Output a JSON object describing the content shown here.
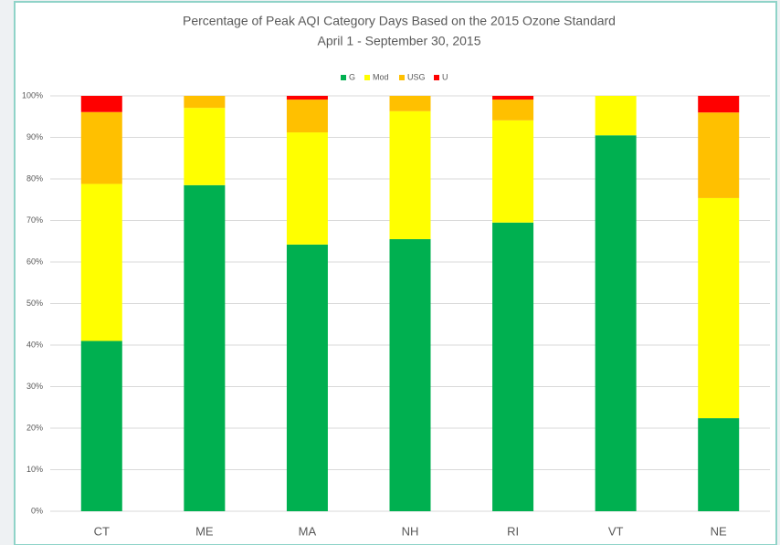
{
  "chart_data": {
    "type": "stacked_bar",
    "title": "Percentage of Peak AQI Category Days Based on the 2015 Ozone Standard",
    "subtitle": "April 1 - September 30, 2015",
    "categories": [
      "CT",
      "ME",
      "MA",
      "NH",
      "RI",
      "VT",
      "NE"
    ],
    "series": [
      {
        "name": "G",
        "color": "#00b050",
        "values": [
          41,
          78.5,
          64.2,
          65.5,
          69.5,
          90.5,
          22.4
        ]
      },
      {
        "name": "Mod",
        "color": "#ffff00",
        "values": [
          37.8,
          18.6,
          27,
          30.8,
          24.6,
          9.5,
          53
        ]
      },
      {
        "name": "USG",
        "color": "#ffc000",
        "values": [
          17.3,
          2.9,
          7.9,
          3.7,
          5,
          0,
          20.6
        ]
      },
      {
        "name": "U",
        "color": "#ff0000",
        "values": [
          3.9,
          0,
          0.9,
          0,
          0.9,
          0,
          4
        ]
      }
    ],
    "ylim": [
      0,
      100
    ],
    "yticks": [
      {
        "value": 0,
        "label": "0%"
      },
      {
        "value": 10,
        "label": "10%"
      },
      {
        "value": 20,
        "label": "20%"
      },
      {
        "value": 30,
        "label": "30%"
      },
      {
        "value": 40,
        "label": "40%"
      },
      {
        "value": 50,
        "label": "50%"
      },
      {
        "value": 60,
        "label": "60%"
      },
      {
        "value": 70,
        "label": "70%"
      },
      {
        "value": 80,
        "label": "80%"
      },
      {
        "value": 90,
        "label": "90%"
      },
      {
        "value": 100,
        "label": "100%"
      }
    ],
    "grid": true,
    "legend": "top"
  }
}
